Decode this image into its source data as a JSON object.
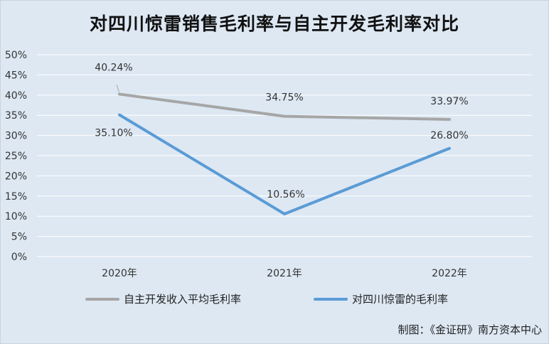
{
  "title": "对四川惊雷销售毛利率与自主开发毛利率对比",
  "source": "制图：《金证研》南方资本中心",
  "colors": {
    "background": "#dde8f3",
    "series1": "#a6a6a6",
    "series2": "#5b9bd5",
    "grid": "#ffffff"
  },
  "chart_data": {
    "type": "line",
    "title": "对四川惊雷销售毛利率与自主开发毛利率对比",
    "categories": [
      "2020年",
      "2021年",
      "2022年"
    ],
    "ylim": [
      0,
      50
    ],
    "yticks": [
      "0%",
      "5%",
      "10%",
      "15%",
      "20%",
      "25%",
      "30%",
      "35%",
      "40%",
      "45%",
      "50%"
    ],
    "grid": true,
    "legend_position": "bottom",
    "series": [
      {
        "name": "自主开发收入平均毛利率",
        "values": [
          40.24,
          34.75,
          33.97
        ],
        "labels": [
          "40.24%",
          "34.75%",
          "33.97%"
        ]
      },
      {
        "name": "对四川惊雷的毛利率",
        "values": [
          35.1,
          10.56,
          26.8
        ],
        "labels": [
          "35.10%",
          "10.56%",
          "26.80%"
        ]
      }
    ]
  }
}
